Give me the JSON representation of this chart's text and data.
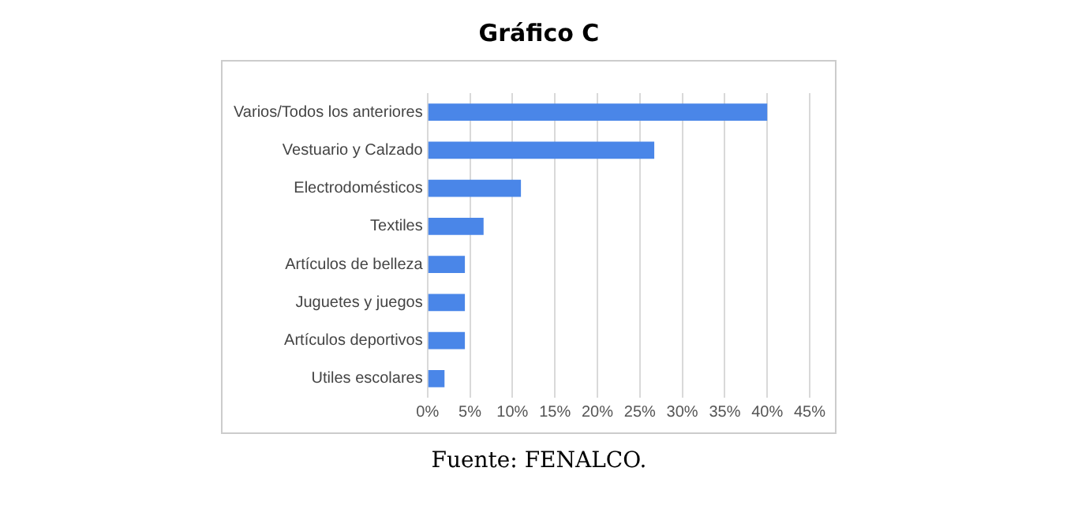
{
  "chart_data": {
    "type": "bar",
    "orientation": "horizontal",
    "title": "Gráfico C",
    "categories": [
      "Varios/Todos los anteriores",
      "Vestuario y Calzado",
      "Electrodomésticos",
      "Textiles",
      "Artículos de belleza",
      "Juguetes y juegos",
      "Artículos deportivos",
      "Utiles escolares"
    ],
    "values": [
      40,
      26.7,
      11,
      6.6,
      4.4,
      4.4,
      4.4,
      2
    ],
    "color": "#4a86e8",
    "xlim": [
      0,
      45
    ],
    "xticks": [
      {
        "value": 0,
        "label": "0%"
      },
      {
        "value": 5,
        "label": "5%"
      },
      {
        "value": 10,
        "label": "10%"
      },
      {
        "value": 15,
        "label": "15%"
      },
      {
        "value": 20,
        "label": "20%"
      },
      {
        "value": 25,
        "label": "25%"
      },
      {
        "value": 30,
        "label": "30%"
      },
      {
        "value": 35,
        "label": "35%"
      },
      {
        "value": 40,
        "label": "40%"
      },
      {
        "value": 45,
        "label": "45%"
      }
    ],
    "grid": "x",
    "annotations": [
      "Fuente: FENALCO."
    ]
  }
}
